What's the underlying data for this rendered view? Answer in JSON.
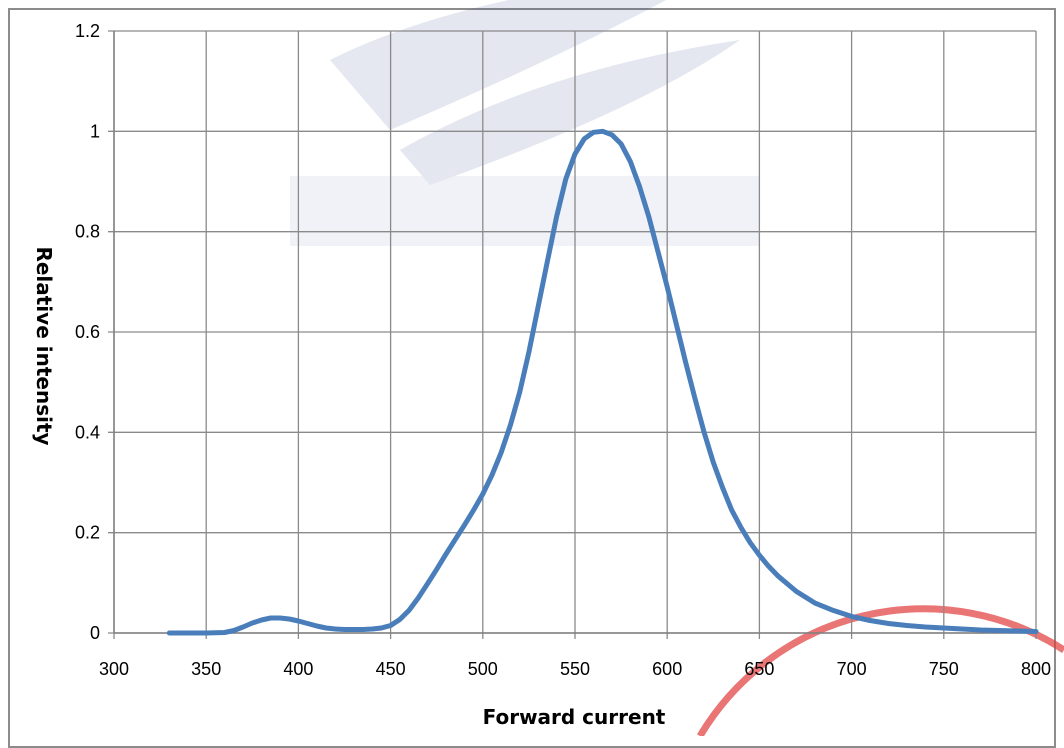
{
  "chart_data": {
    "type": "line",
    "xlabel": "Forward current",
    "ylabel": "Relative intensity",
    "xlim": [
      300,
      800
    ],
    "ylim": [
      0,
      1.2
    ],
    "x_ticks": [
      "300",
      "350",
      "400",
      "450",
      "500",
      "550",
      "600",
      "650",
      "700",
      "750",
      "800"
    ],
    "y_ticks": [
      "0",
      "0.2",
      "0.4",
      "0.6",
      "0.8",
      "1",
      "1.2"
    ],
    "grid": true,
    "series_color": "#4a7ebb",
    "x": [
      330,
      340,
      350,
      360,
      365,
      370,
      375,
      380,
      385,
      390,
      395,
      400,
      405,
      410,
      415,
      420,
      425,
      430,
      435,
      440,
      445,
      450,
      455,
      460,
      465,
      470,
      475,
      480,
      485,
      490,
      495,
      500,
      505,
      510,
      515,
      520,
      525,
      530,
      535,
      540,
      545,
      550,
      555,
      560,
      565,
      570,
      575,
      580,
      585,
      590,
      595,
      600,
      605,
      610,
      615,
      620,
      625,
      630,
      635,
      640,
      645,
      650,
      655,
      660,
      670,
      680,
      690,
      700,
      710,
      720,
      730,
      740,
      750,
      760,
      770,
      780,
      790,
      800
    ],
    "y": [
      0,
      0,
      0,
      0.001,
      0.005,
      0.012,
      0.02,
      0.026,
      0.03,
      0.03,
      0.028,
      0.024,
      0.019,
      0.014,
      0.01,
      0.008,
      0.007,
      0.007,
      0.007,
      0.008,
      0.01,
      0.015,
      0.027,
      0.045,
      0.07,
      0.098,
      0.127,
      0.157,
      0.186,
      0.215,
      0.245,
      0.277,
      0.315,
      0.36,
      0.415,
      0.48,
      0.56,
      0.65,
      0.74,
      0.83,
      0.905,
      0.955,
      0.985,
      0.998,
      1.0,
      0.993,
      0.975,
      0.94,
      0.89,
      0.83,
      0.76,
      0.69,
      0.615,
      0.54,
      0.468,
      0.4,
      0.34,
      0.29,
      0.245,
      0.21,
      0.18,
      0.155,
      0.133,
      0.114,
      0.083,
      0.06,
      0.045,
      0.033,
      0.025,
      0.019,
      0.015,
      0.012,
      0.01,
      0.008,
      0.006,
      0.005,
      0.004,
      0.003
    ]
  }
}
